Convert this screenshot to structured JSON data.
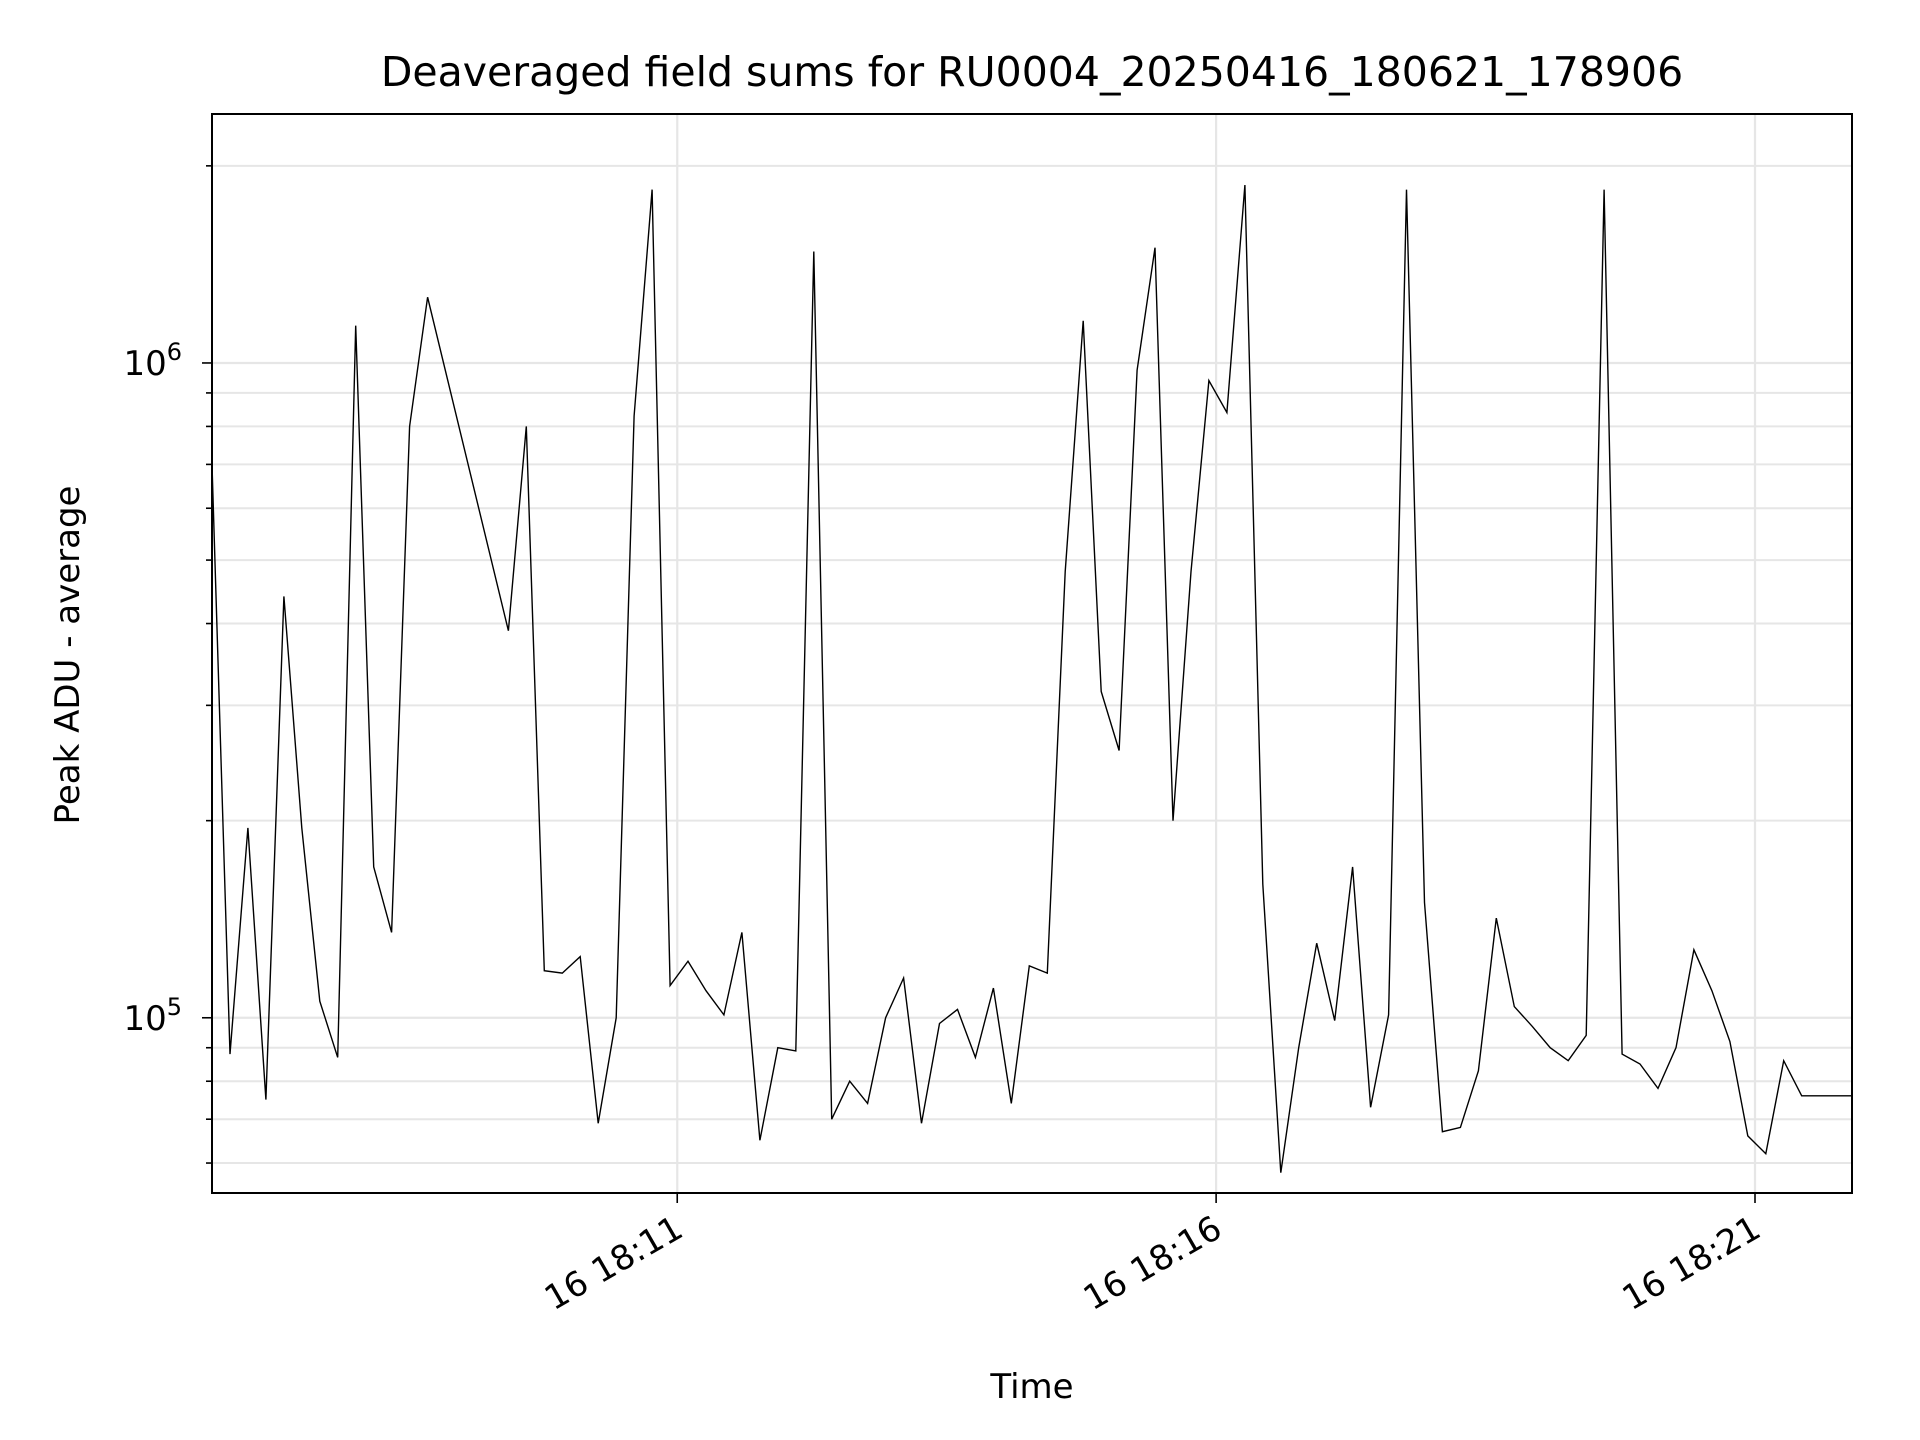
{
  "chart_data": {
    "type": "line",
    "title": "Deaveraged field sums for RU0004_20250416_180621_178906",
    "xlabel": "Time",
    "ylabel": "Peak ADU - average",
    "y_scale": "log",
    "grid": true,
    "line_color": "#000000",
    "grid_color": "#e6e6e6",
    "xlim": [
      "2025-04-16 18:06:41",
      "2025-04-16 18:21:54"
    ],
    "ylim": [
      54000,
      2400000
    ],
    "x_ticks": [
      {
        "value": "2025-04-16 18:11:00",
        "label": "16 18:11"
      },
      {
        "value": "2025-04-16 18:16:00",
        "label": "16 18:16"
      },
      {
        "value": "2025-04-16 18:21:00",
        "label": "16 18:21"
      }
    ],
    "y_ticks": [
      {
        "value": 100000,
        "base": "10",
        "exp": "5"
      },
      {
        "value": 1000000,
        "base": "10",
        "exp": "6"
      }
    ],
    "series": [
      {
        "x": [
          "2025-04-16 18:06:41",
          "2025-04-16 18:06:51",
          "2025-04-16 18:07:01",
          "2025-04-16 18:07:11",
          "2025-04-16 18:07:21",
          "2025-04-16 18:07:31",
          "2025-04-16 18:07:41",
          "2025-04-16 18:07:51",
          "2025-04-16 18:08:01",
          "2025-04-16 18:08:11",
          "2025-04-16 18:08:21",
          "2025-04-16 18:08:31",
          "2025-04-16 18:08:41",
          "2025-04-16 18:09:26",
          "2025-04-16 18:09:36",
          "2025-04-16 18:09:46",
          "2025-04-16 18:09:56",
          "2025-04-16 18:10:06",
          "2025-04-16 18:10:16",
          "2025-04-16 18:10:26",
          "2025-04-16 18:10:36",
          "2025-04-16 18:10:46",
          "2025-04-16 18:10:56",
          "2025-04-16 18:11:06",
          "2025-04-16 18:11:16",
          "2025-04-16 18:11:26",
          "2025-04-16 18:11:36",
          "2025-04-16 18:11:46",
          "2025-04-16 18:11:56",
          "2025-04-16 18:12:06",
          "2025-04-16 18:12:16",
          "2025-04-16 18:12:26",
          "2025-04-16 18:12:36",
          "2025-04-16 18:12:46",
          "2025-04-16 18:12:56",
          "2025-04-16 18:13:06",
          "2025-04-16 18:13:16",
          "2025-04-16 18:13:26",
          "2025-04-16 18:13:36",
          "2025-04-16 18:13:46",
          "2025-04-16 18:13:56",
          "2025-04-16 18:14:06",
          "2025-04-16 18:14:16",
          "2025-04-16 18:14:26",
          "2025-04-16 18:14:36",
          "2025-04-16 18:14:46",
          "2025-04-16 18:14:56",
          "2025-04-16 18:15:06",
          "2025-04-16 18:15:16",
          "2025-04-16 18:15:26",
          "2025-04-16 18:15:36",
          "2025-04-16 18:15:46",
          "2025-04-16 18:15:56",
          "2025-04-16 18:16:06",
          "2025-04-16 18:16:16",
          "2025-04-16 18:16:26",
          "2025-04-16 18:16:36",
          "2025-04-16 18:16:46",
          "2025-04-16 18:16:56",
          "2025-04-16 18:17:06",
          "2025-04-16 18:17:16",
          "2025-04-16 18:17:26",
          "2025-04-16 18:17:36",
          "2025-04-16 18:17:46",
          "2025-04-16 18:17:56",
          "2025-04-16 18:18:06",
          "2025-04-16 18:18:16",
          "2025-04-16 18:18:26",
          "2025-04-16 18:18:36",
          "2025-04-16 18:18:46",
          "2025-04-16 18:18:56",
          "2025-04-16 18:19:06",
          "2025-04-16 18:19:16",
          "2025-04-16 18:19:26",
          "2025-04-16 18:19:36",
          "2025-04-16 18:19:46",
          "2025-04-16 18:19:56",
          "2025-04-16 18:20:06",
          "2025-04-16 18:20:16",
          "2025-04-16 18:20:26",
          "2025-04-16 18:20:36",
          "2025-04-16 18:20:46",
          "2025-04-16 18:20:56",
          "2025-04-16 18:21:06",
          "2025-04-16 18:21:16",
          "2025-04-16 18:21:26",
          "2025-04-16 18:21:36",
          "2025-04-16 18:21:46",
          "2025-04-16 18:21:54"
        ],
        "y": [
          700000,
          88000,
          195000,
          75000,
          440000,
          195000,
          106000,
          87000,
          1140000,
          170000,
          135000,
          800000,
          1260000,
          390000,
          800000,
          118000,
          117000,
          124000,
          69000,
          100000,
          830000,
          1840000,
          112000,
          122000,
          110000,
          101000,
          135000,
          65000,
          90000,
          89000,
          1480000,
          70000,
          80000,
          74000,
          100000,
          115000,
          69000,
          98000,
          103000,
          87000,
          111000,
          74000,
          120000,
          117000,
          480000,
          1160000,
          315000,
          256000,
          975000,
          1500000,
          200000,
          480000,
          940000,
          840000,
          1870000,
          160000,
          58000,
          90000,
          130000,
          99000,
          170000,
          73000,
          101000,
          1840000,
          150000,
          67000,
          68000,
          83000,
          142000,
          104000,
          97000,
          90000,
          86000,
          94000,
          1840000,
          88000,
          85000,
          78000,
          90000,
          127000,
          110000,
          92000,
          66000,
          62000,
          86000,
          76000,
          76000,
          76000,
          76000
        ]
      }
    ]
  }
}
